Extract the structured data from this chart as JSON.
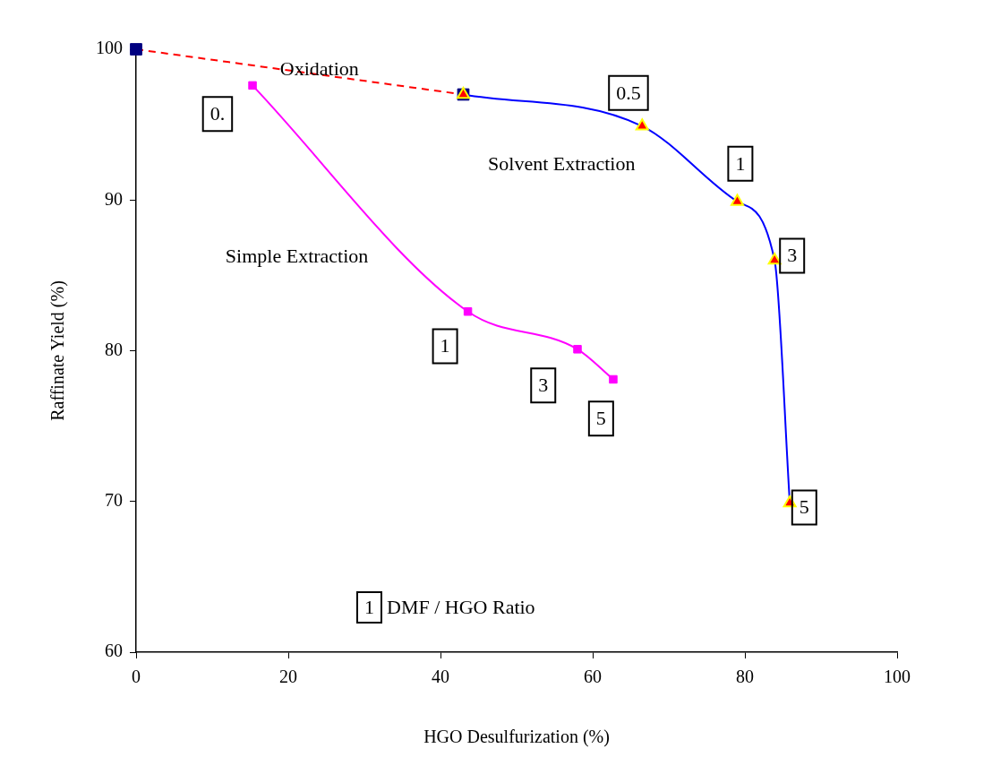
{
  "chart_data": {
    "type": "line",
    "xlabel": "HGO Desulfurization (%)",
    "ylabel": "Raffinate Yield (%)",
    "xlim": [
      0,
      100
    ],
    "xticks": [
      0,
      20,
      40,
      60,
      80,
      100
    ],
    "ylim": [
      60,
      100
    ],
    "yticks": [
      60,
      70,
      80,
      90,
      100
    ],
    "grid": false,
    "legend": false,
    "series": [
      {
        "name": "Oxidation",
        "color": "#ff0000",
        "colors": [
          "#000080",
          "#000080"
        ],
        "marker": "square",
        "line_style": "dashed",
        "x": [
          0,
          43
        ],
        "values": [
          100,
          97
        ]
      },
      {
        "name": "Solvent Extraction",
        "color": "#0000ff",
        "colors": [
          "#ff0000",
          "#ff0000",
          "#ff0000",
          "#ff0000",
          "#ff0000"
        ],
        "marker": "triangle",
        "line_style": "solid",
        "x": [
          43,
          66.5,
          79,
          83.9,
          85.9
        ],
        "values": [
          97,
          94.9,
          89.9,
          86,
          69.9
        ]
      },
      {
        "name": "Simple Extraction",
        "color": "#ff00ff",
        "colors": [
          "#ff00ff",
          "#ff00ff",
          "#ff00ff",
          "#ff00ff"
        ],
        "marker": "square",
        "line_style": "solid",
        "x": [
          15.3,
          43.6,
          58,
          62.7
        ],
        "values": [
          97.6,
          82.6,
          80.1,
          78.1
        ]
      }
    ],
    "annotations": [
      {
        "text": "0.",
        "x": 10.7,
        "y": 95.7
      },
      {
        "text": "0.5",
        "x": 64.7,
        "y": 97.1
      },
      {
        "text": "1",
        "x": 79.4,
        "y": 92.4
      },
      {
        "text": "3",
        "x": 86.2,
        "y": 86.3
      },
      {
        "text": "5",
        "x": 87.8,
        "y": 69.6
      },
      {
        "text": "1",
        "x": 40.6,
        "y": 80.3
      },
      {
        "text": "3",
        "x": 53.5,
        "y": 77.7
      },
      {
        "text": "5",
        "x": 61.1,
        "y": 75.5
      },
      "1 DMF / HGO Ratio"
    ]
  }
}
